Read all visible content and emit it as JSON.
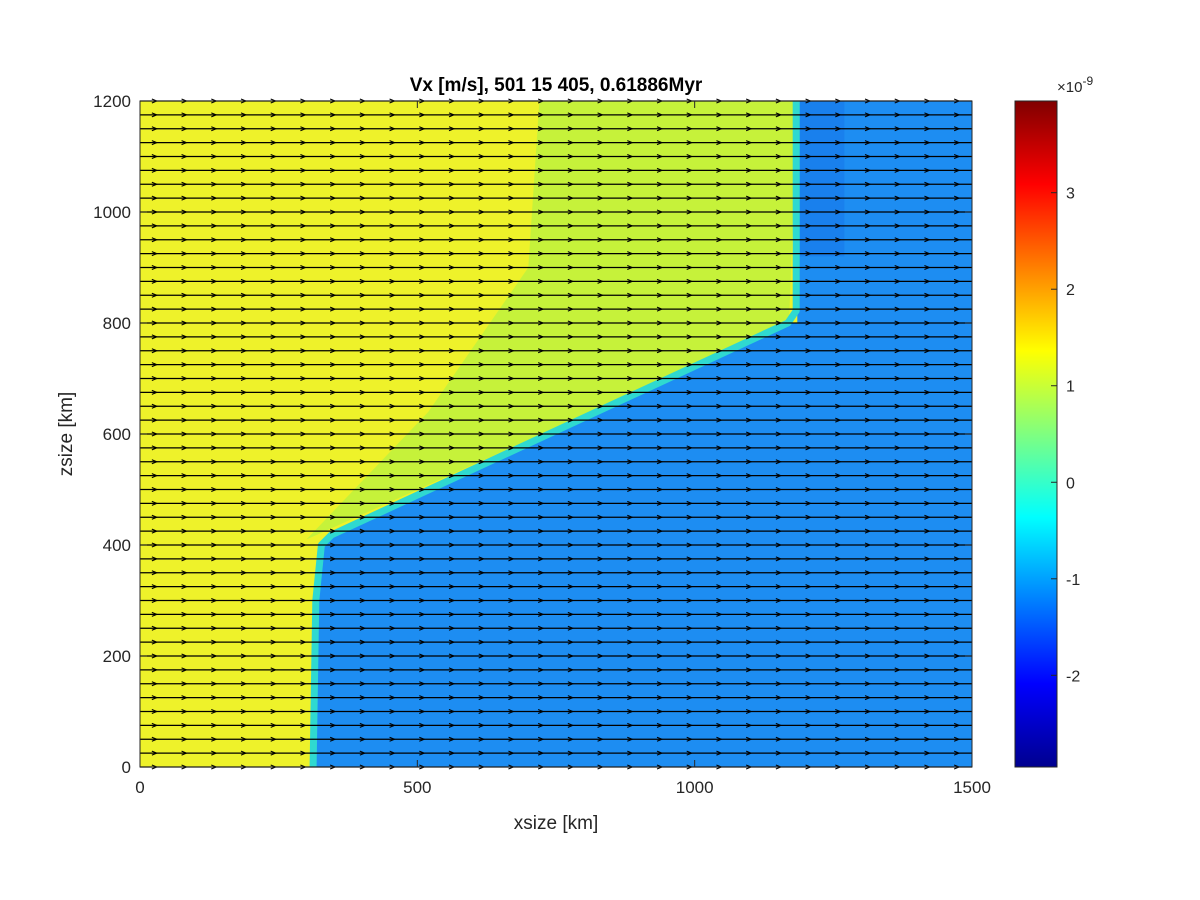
{
  "chart_data": {
    "type": "heatmap",
    "title": "Vx [m/s], 501 15 405, 0.61886Myr",
    "xlabel": "xsize [km]",
    "ylabel": "zsize [km]",
    "xlim": [
      0,
      1500
    ],
    "ylim": [
      0,
      1200
    ],
    "xticks": [
      0,
      500,
      1000,
      1500
    ],
    "yticks": [
      0,
      200,
      400,
      600,
      800,
      1000,
      1200
    ],
    "colormap": "jet",
    "colorbar": {
      "exponent_label": "×10",
      "exponent": "-9",
      "ticks": [
        -2,
        -1,
        0,
        1,
        2,
        3
      ],
      "clim": [
        -2.95,
        3.95
      ]
    },
    "regions": [
      {
        "value": 1.3,
        "color": "#eef22a",
        "boundary_km": [
          [
            0,
            0
          ],
          [
            310,
            0
          ],
          [
            315,
            300
          ],
          [
            325,
            400
          ],
          [
            340,
            415
          ],
          [
            1170,
            800
          ],
          [
            1185,
            820
          ],
          [
            1185,
            1200
          ],
          [
            0,
            1200
          ]
        ]
      },
      {
        "value": 0.9,
        "color": "#c6f23a",
        "boundary_km": [
          [
            300,
            410
          ],
          [
            1170,
            800
          ],
          [
            1185,
            1200
          ],
          [
            720,
            1200
          ],
          [
            700,
            900
          ],
          [
            520,
            640
          ]
        ]
      },
      {
        "value": -1.1,
        "color": "#1d8df2",
        "boundary_km": [
          [
            310,
            0
          ],
          [
            1500,
            0
          ],
          [
            1500,
            1200
          ],
          [
            1185,
            1200
          ],
          [
            1185,
            800
          ],
          [
            1170,
            800
          ],
          [
            340,
            415
          ],
          [
            325,
            400
          ],
          [
            315,
            300
          ]
        ]
      }
    ],
    "vector_field": {
      "rows_z_km": [
        0,
        25,
        50,
        75,
        100,
        125,
        150,
        175,
        200,
        225,
        250,
        275,
        300,
        325,
        350,
        375,
        400,
        425,
        450,
        475,
        500,
        525,
        550,
        575,
        600,
        625,
        650,
        675,
        700,
        725,
        750,
        775,
        800,
        825,
        850,
        875,
        900,
        925,
        950,
        975,
        1000,
        1025,
        1050,
        1075,
        1100,
        1125,
        1150,
        1175,
        1200
      ],
      "direction": "horizontal"
    }
  }
}
